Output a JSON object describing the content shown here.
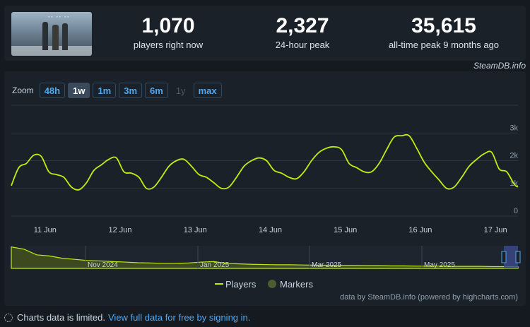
{
  "stats": [
    {
      "value": "1,070",
      "label": "players right now"
    },
    {
      "value": "2,327",
      "label": "24-hour peak"
    },
    {
      "value": "35,615",
      "label": "all-time peak 9 months ago"
    }
  ],
  "brand": "SteamDB.info",
  "zoom": {
    "label": "Zoom",
    "buttons": [
      {
        "label": "48h",
        "state": "normal"
      },
      {
        "label": "1w",
        "state": "active"
      },
      {
        "label": "1m",
        "state": "normal"
      },
      {
        "label": "3m",
        "state": "normal"
      },
      {
        "label": "6m",
        "state": "normal"
      },
      {
        "label": "1y",
        "state": "disabled"
      },
      {
        "label": "max",
        "state": "normal"
      }
    ]
  },
  "chart_data": {
    "type": "line",
    "x_ticks": [
      "11 Jun",
      "12 Jun",
      "13 Jun",
      "14 Jun",
      "15 Jun",
      "16 Jun",
      "17 Jun"
    ],
    "x_tick_values": [
      1,
      2,
      3,
      4,
      5,
      6,
      7
    ],
    "y_ticks": [
      "0",
      "1k",
      "2k",
      "3k"
    ],
    "y_tick_values": [
      0,
      1000,
      2000,
      3000
    ],
    "ylim": [
      0,
      4000
    ],
    "xlim": [
      0.55,
      7.3
    ],
    "grid": true,
    "legend_position": "bottom-center",
    "series": [
      {
        "name": "Players",
        "color": "#beee11",
        "x": [
          0.55,
          0.65,
          0.75,
          0.85,
          0.95,
          1.05,
          1.15,
          1.25,
          1.35,
          1.45,
          1.55,
          1.65,
          1.75,
          1.85,
          1.95,
          2.05,
          2.15,
          2.25,
          2.35,
          2.45,
          2.55,
          2.65,
          2.75,
          2.85,
          2.95,
          3.05,
          3.15,
          3.25,
          3.35,
          3.45,
          3.55,
          3.65,
          3.75,
          3.85,
          3.95,
          4.05,
          4.15,
          4.25,
          4.35,
          4.45,
          4.55,
          4.65,
          4.75,
          4.85,
          4.95,
          5.05,
          5.15,
          5.25,
          5.35,
          5.45,
          5.55,
          5.65,
          5.75,
          5.85,
          5.95,
          6.05,
          6.15,
          6.25,
          6.35,
          6.45,
          6.55,
          6.65,
          6.75,
          6.85,
          6.95,
          7.05,
          7.15,
          7.25,
          7.3
        ],
        "values": [
          1100,
          1750,
          1900,
          2200,
          2150,
          1600,
          1500,
          1400,
          1050,
          950,
          1200,
          1650,
          1850,
          2050,
          2100,
          1600,
          1550,
          1400,
          1000,
          1050,
          1400,
          1800,
          2000,
          2050,
          1800,
          1500,
          1400,
          1200,
          1000,
          1050,
          1400,
          1800,
          2000,
          2100,
          2000,
          1650,
          1550,
          1400,
          1350,
          1600,
          2000,
          2300,
          2450,
          2500,
          2400,
          1900,
          1750,
          1600,
          1600,
          1900,
          2400,
          2850,
          2900,
          2900,
          2450,
          1950,
          1600,
          1300,
          1000,
          1050,
          1400,
          1800,
          2050,
          2250,
          2300,
          1700,
          1600,
          1150,
          1050
        ]
      }
    ],
    "navigator": {
      "ticks": [
        "Nov 2024",
        "Jan 2025",
        "Mar 2025",
        "May 2025"
      ],
      "values": [
        0.95,
        0.85,
        0.6,
        0.55,
        0.45,
        0.4,
        0.35,
        0.33,
        0.3,
        0.28,
        0.25,
        0.24,
        0.22,
        0.22,
        0.24,
        0.28,
        0.3,
        0.22,
        0.2,
        0.18,
        0.17,
        0.16,
        0.16,
        0.15,
        0.14,
        0.14,
        0.13,
        0.13,
        0.12,
        0.12,
        0.11,
        0.11,
        0.1,
        0.1,
        0.1,
        0.09,
        0.09,
        0.09,
        0.08,
        0.08,
        0.07
      ]
    },
    "legend": [
      {
        "name": "Players",
        "color": "#beee11",
        "symbol": "line"
      },
      {
        "name": "Markers",
        "color": "#4a5e2f",
        "symbol": "circle"
      }
    ],
    "credit": "data by SteamDB.info (powered by highcharts.com)"
  },
  "footer": {
    "text": "Charts data is limited.",
    "link": "View full data for free by signing in."
  }
}
